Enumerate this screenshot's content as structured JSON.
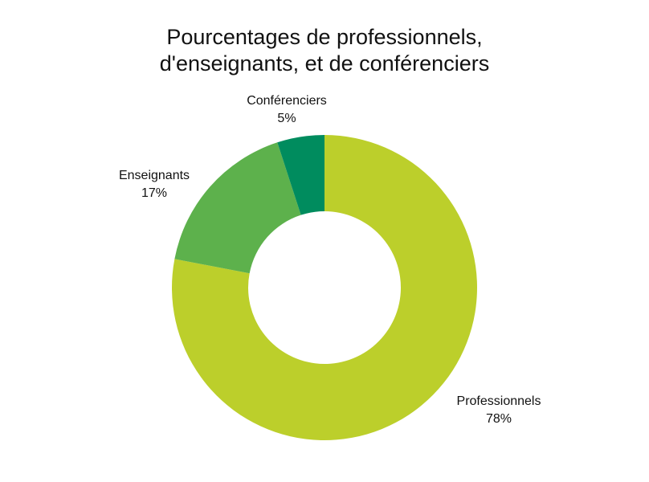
{
  "chart_data": {
    "type": "pie",
    "variant": "donut",
    "title": "Pourcentages de professionnels, d'enseignants, et de conférenciers",
    "title_lines": [
      "Pourcentages de professionnels,",
      "d'enseignants, et de conférenciers"
    ],
    "categories": [
      "Professionnels",
      "Enseignants",
      "Conférenciers"
    ],
    "values": [
      78,
      17,
      5
    ],
    "value_labels": [
      "78%",
      "17%",
      "5%"
    ],
    "colors": [
      "#bccf2b",
      "#5db14c",
      "#008c5e"
    ],
    "start_angle": "12 o'clock, clockwise",
    "legend": "none (labels outside slices)"
  }
}
